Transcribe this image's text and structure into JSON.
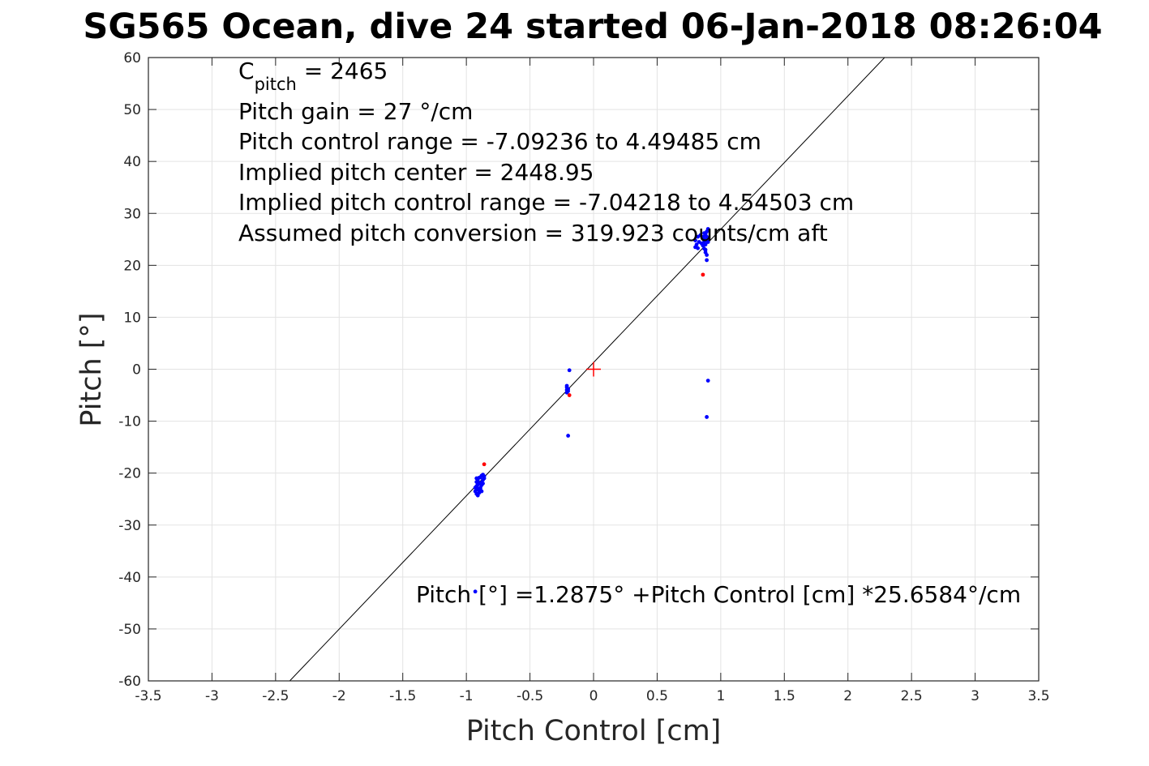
{
  "chart_data": {
    "type": "scatter",
    "title": "SG565 Ocean, dive 24 started 06-Jan-2018 08:26:04",
    "xlabel": "Pitch Control [cm]",
    "ylabel": "Pitch [°]",
    "xlim": [
      -3.5,
      3.5
    ],
    "ylim": [
      -60,
      60
    ],
    "xticks": [
      -3.5,
      -3,
      -2.5,
      -2,
      -1.5,
      -1,
      -0.5,
      0,
      0.5,
      1,
      1.5,
      2,
      2.5,
      3,
      3.5
    ],
    "xtick_labels": [
      "-3.5",
      "-3",
      "-2.5",
      "-2",
      "-1.5",
      "-1",
      "-0.5",
      "0",
      "0.5",
      "1",
      "1.5",
      "2",
      "2.5",
      "3",
      "3.5"
    ],
    "yticks": [
      60,
      50,
      40,
      30,
      20,
      10,
      0,
      -10,
      -20,
      -30,
      -40,
      -50,
      -60
    ],
    "ytick_labels": [
      "60",
      "50",
      "40",
      "30",
      "20",
      "10",
      "0",
      "-10",
      "-20",
      "-30",
      "-40",
      "-50",
      "-60"
    ],
    "grid": true,
    "annotations": {
      "cpitch_main": "C",
      "cpitch_sub": "pitch",
      "cpitch_rest": " = 2465",
      "lines": [
        "Pitch gain = 27 °/cm",
        "Pitch control range = -7.09236 to 4.49485 cm",
        "Implied pitch center = 2448.95",
        "Implied pitch control range = -7.04218 to 4.54503 cm",
        "Assumed pitch conversion = 319.923 counts/cm aft"
      ],
      "fit_text": "Pitch [°] =1.2875° +Pitch Control [cm] *25.6584°/cm"
    },
    "fit_line": {
      "intercept": 1.2875,
      "slope": 25.6584,
      "color": "#000000"
    },
    "center_marker": {
      "x": 0,
      "y": 0,
      "color": "#ff0000",
      "marker": "plus"
    },
    "series": [
      {
        "color": "#0000ff",
        "points": [
          [
            -0.92,
            -21.0
          ],
          [
            -0.91,
            -21.5
          ],
          [
            -0.9,
            -22.0
          ],
          [
            -0.92,
            -22.5
          ],
          [
            -0.91,
            -23.0
          ],
          [
            -0.93,
            -23.5
          ],
          [
            -0.92,
            -24.0
          ],
          [
            -0.91,
            -24.3
          ],
          [
            -0.9,
            -23.8
          ],
          [
            -0.89,
            -22.8
          ],
          [
            -0.88,
            -21.8
          ],
          [
            -0.89,
            -20.8
          ],
          [
            -0.87,
            -20.3
          ],
          [
            -0.86,
            -20.6
          ],
          [
            -0.87,
            -21.3
          ],
          [
            -0.88,
            -22.3
          ],
          [
            -0.9,
            -23.3
          ],
          [
            -0.91,
            -22.2
          ],
          [
            -0.92,
            -21.7
          ],
          [
            -0.89,
            -23.0
          ],
          [
            -0.88,
            -23.5
          ],
          [
            -0.87,
            -22.0
          ],
          [
            -0.86,
            -21.0
          ],
          [
            -0.93,
            -22.8
          ],
          [
            -0.9,
            -20.9
          ],
          [
            -0.91,
            -24.0
          ],
          [
            -0.88,
            -20.5
          ],
          [
            -0.92,
            -23.2
          ],
          [
            -0.93,
            -42.8
          ],
          [
            -0.21,
            -3.5
          ],
          [
            -0.21,
            -4.0
          ],
          [
            -0.2,
            -3.8
          ],
          [
            -0.21,
            -4.5
          ],
          [
            -0.2,
            -4.2
          ],
          [
            -0.21,
            -3.2
          ],
          [
            -0.19,
            -0.2
          ],
          [
            -0.2,
            -12.8
          ],
          [
            0.8,
            23.5
          ],
          [
            0.81,
            24.0
          ],
          [
            0.82,
            23.3
          ],
          [
            0.8,
            24.8
          ],
          [
            0.82,
            25.5
          ],
          [
            0.83,
            24.5
          ],
          [
            0.84,
            25.8
          ],
          [
            0.85,
            24.2
          ],
          [
            0.86,
            23.8
          ],
          [
            0.87,
            23.2
          ],
          [
            0.88,
            22.5
          ],
          [
            0.89,
            22.0
          ],
          [
            0.88,
            24.0
          ],
          [
            0.87,
            25.0
          ],
          [
            0.89,
            25.5
          ],
          [
            0.88,
            26.0
          ],
          [
            0.9,
            27.0
          ],
          [
            0.89,
            26.5
          ],
          [
            0.9,
            24.5
          ],
          [
            0.88,
            23.0
          ],
          [
            0.89,
            21.0
          ],
          [
            0.87,
            26.2
          ],
          [
            0.9,
            25.2
          ],
          [
            0.86,
            25.5
          ],
          [
            0.89,
            24.8
          ],
          [
            0.88,
            25.8
          ],
          [
            0.87,
            24.5
          ],
          [
            0.9,
            -2.2
          ],
          [
            0.89,
            -9.2
          ]
        ]
      },
      {
        "color": "#ff0000",
        "points": [
          [
            -0.86,
            -18.3
          ],
          [
            -0.19,
            -5.0
          ],
          [
            0.86,
            18.2
          ]
        ]
      }
    ]
  }
}
